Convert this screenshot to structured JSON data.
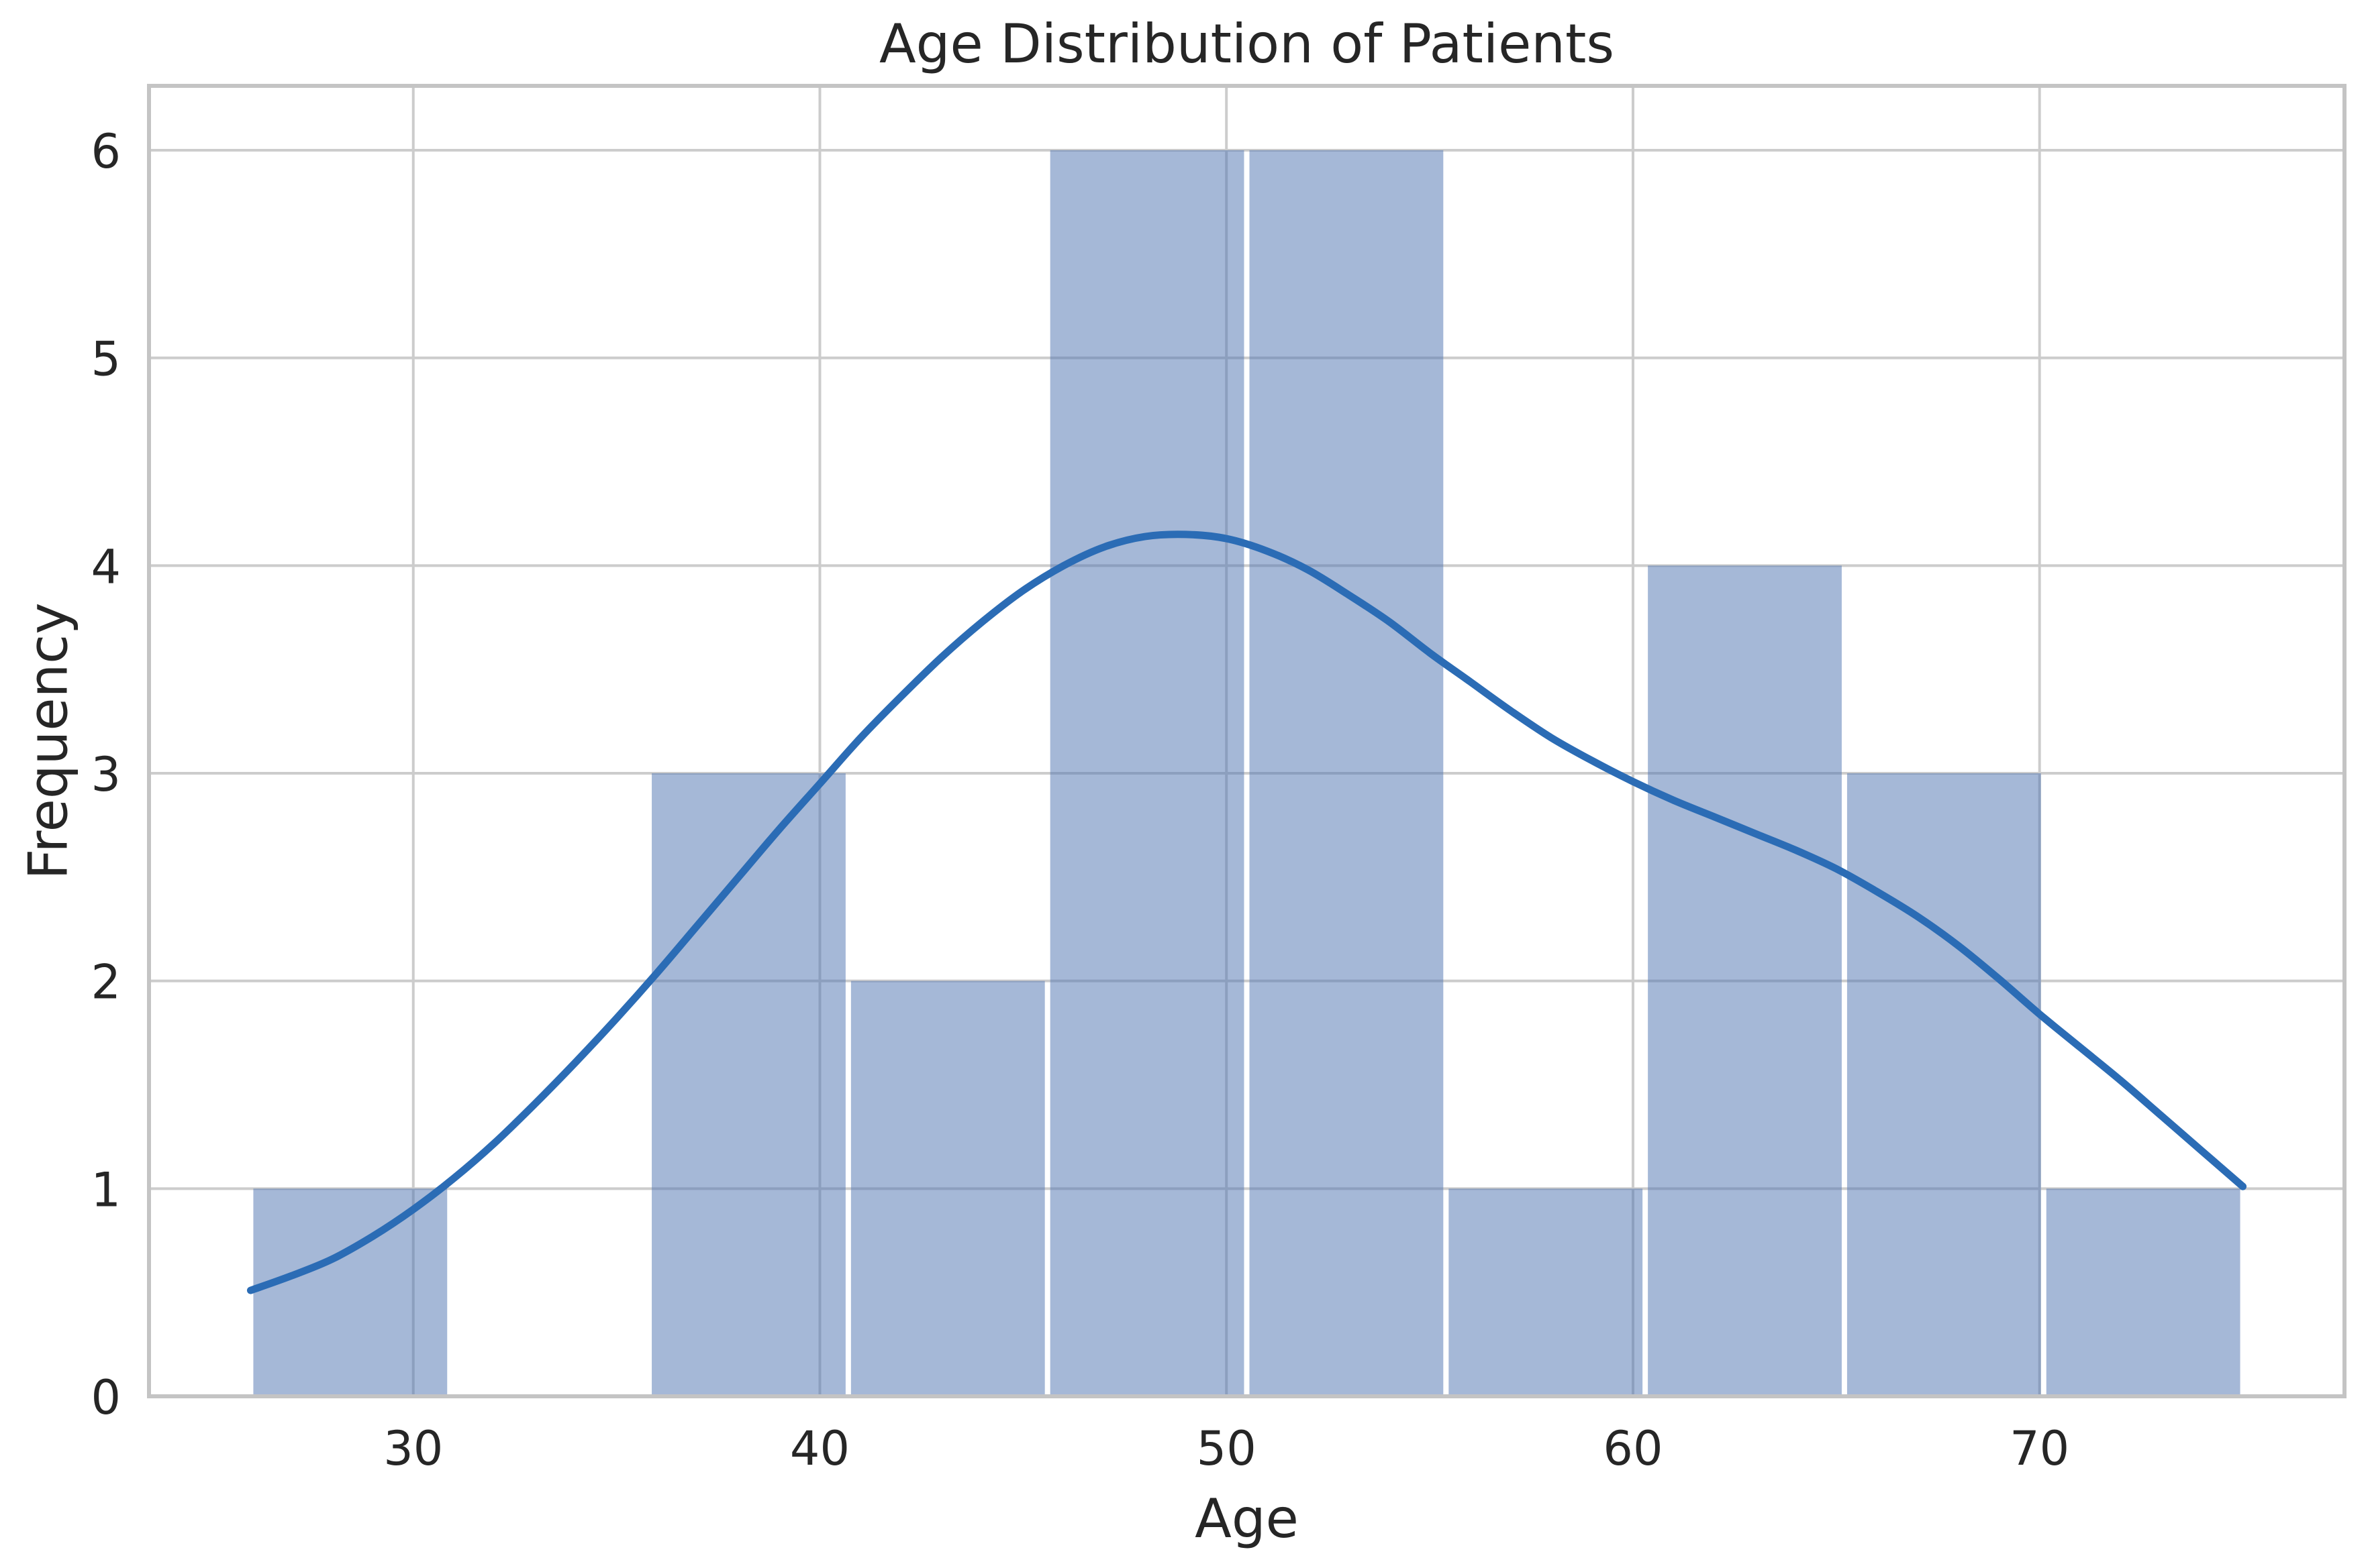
{
  "chart_data": {
    "type": "bar",
    "subtype": "histogram-with-kde",
    "title": "Age Distribution of Patients",
    "xlabel": "Age",
    "ylabel": "Frequency",
    "bin_edges": [
      26,
      30.9,
      35.8,
      40.7,
      45.6,
      50.5,
      55.4,
      60.3,
      65.2,
      70.1,
      75
    ],
    "counts": [
      1,
      0,
      3,
      2,
      6,
      6,
      1,
      4,
      3,
      1
    ],
    "kde": [
      [
        26,
        0.51
      ],
      [
        27,
        0.58
      ],
      [
        28,
        0.66
      ],
      [
        29,
        0.77
      ],
      [
        30,
        0.9
      ],
      [
        31,
        1.05
      ],
      [
        32,
        1.22
      ],
      [
        33,
        1.41
      ],
      [
        34,
        1.61
      ],
      [
        35,
        1.82
      ],
      [
        36,
        2.04
      ],
      [
        37,
        2.27
      ],
      [
        38,
        2.5
      ],
      [
        39,
        2.73
      ],
      [
        40,
        2.95
      ],
      [
        41,
        3.17
      ],
      [
        42,
        3.37
      ],
      [
        43,
        3.56
      ],
      [
        44,
        3.73
      ],
      [
        45,
        3.88
      ],
      [
        46,
        4.0
      ],
      [
        47,
        4.09
      ],
      [
        48,
        4.14
      ],
      [
        49,
        4.15
      ],
      [
        50,
        4.13
      ],
      [
        51,
        4.07
      ],
      [
        52,
        3.98
      ],
      [
        53,
        3.86
      ],
      [
        54,
        3.73
      ],
      [
        55,
        3.58
      ],
      [
        56,
        3.44
      ],
      [
        57,
        3.3
      ],
      [
        58,
        3.17
      ],
      [
        59,
        3.06
      ],
      [
        60,
        2.96
      ],
      [
        61,
        2.87
      ],
      [
        62,
        2.79
      ],
      [
        63,
        2.71
      ],
      [
        64,
        2.63
      ],
      [
        65,
        2.54
      ],
      [
        66,
        2.43
      ],
      [
        67,
        2.31
      ],
      [
        68,
        2.17
      ],
      [
        69,
        2.01
      ],
      [
        70,
        1.84
      ],
      [
        71,
        1.68
      ],
      [
        72,
        1.52
      ],
      [
        73,
        1.35
      ],
      [
        74,
        1.18
      ],
      [
        75,
        1.01
      ]
    ],
    "x_ticks": [
      30,
      40,
      50,
      60,
      70
    ],
    "y_ticks": [
      0,
      1,
      2,
      3,
      4,
      5,
      6
    ],
    "xlim": [
      23.5,
      77.5
    ],
    "ylim": [
      0,
      6.31
    ],
    "grid": true,
    "legend": false,
    "colors": {
      "bar_fill": "#4C72B0",
      "bar_alpha": 0.5,
      "kde_line": "#2B6CB5",
      "grid": "#CCCCCC",
      "spine": "#C4C4C4",
      "text": "#262626",
      "background": "#FFFFFF"
    }
  }
}
